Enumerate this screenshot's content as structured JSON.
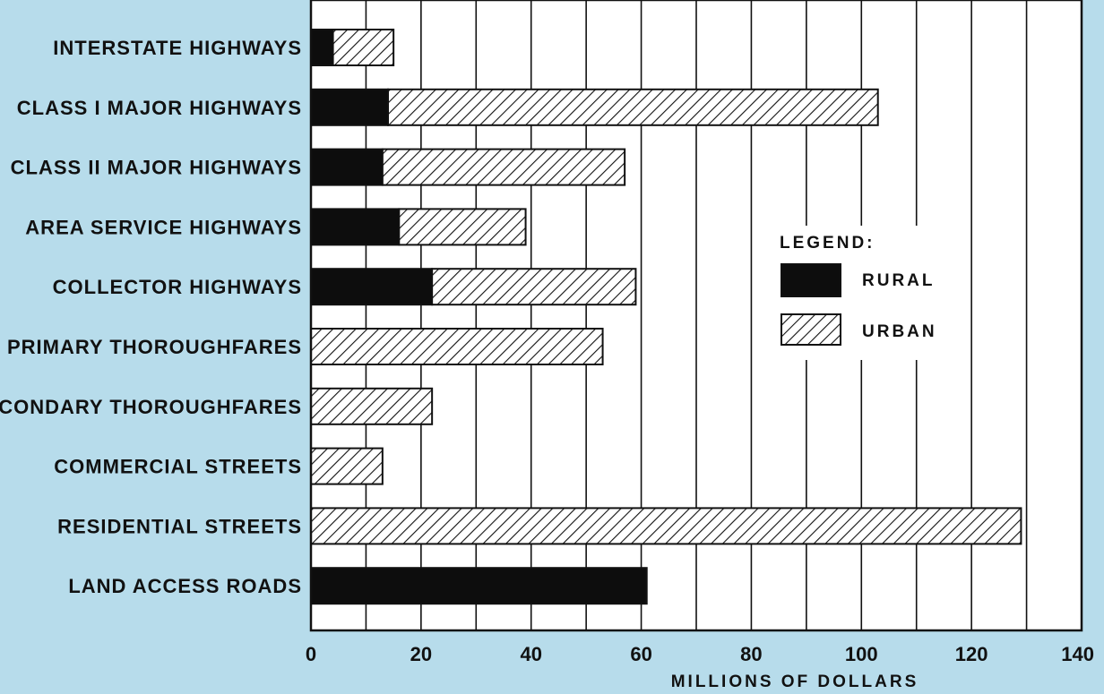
{
  "chart_data": {
    "type": "bar",
    "orientation": "horizontal",
    "stacked": true,
    "categories": [
      "INTERSTATE HIGHWAYS",
      "CLASS I MAJOR HIGHWAYS",
      "CLASS II MAJOR HIGHWAYS",
      "AREA SERVICE HIGHWAYS",
      "COLLECTOR HIGHWAYS",
      "PRIMARY THOROUGHFARES",
      "SECONDARY THOROUGHFARES",
      "COMMERCIAL STREETS",
      "RESIDENTIAL STREETS",
      "LAND ACCESS ROADS"
    ],
    "series": [
      {
        "name": "RURAL",
        "pattern": "solid",
        "color": "#0d0d0d",
        "values": [
          4,
          14,
          13,
          16,
          22,
          0,
          0,
          0,
          0,
          61
        ]
      },
      {
        "name": "URBAN",
        "pattern": "diagonal-hatch",
        "color": "#111111",
        "values": [
          11,
          89,
          44,
          23,
          37,
          53,
          22,
          13,
          129,
          0
        ]
      }
    ],
    "xlabel": "MILLIONS OF DOLLARS",
    "xlim": [
      0,
      140
    ],
    "xticks": [
      0,
      20,
      40,
      60,
      80,
      100,
      120,
      140
    ],
    "grid": "vertical lines every 10",
    "legend": {
      "title": "LEGEND:",
      "placement": "center-right"
    },
    "colors": {
      "background": "#b7dceb",
      "plot_area": "#ffffff",
      "ink": "#111111"
    }
  }
}
